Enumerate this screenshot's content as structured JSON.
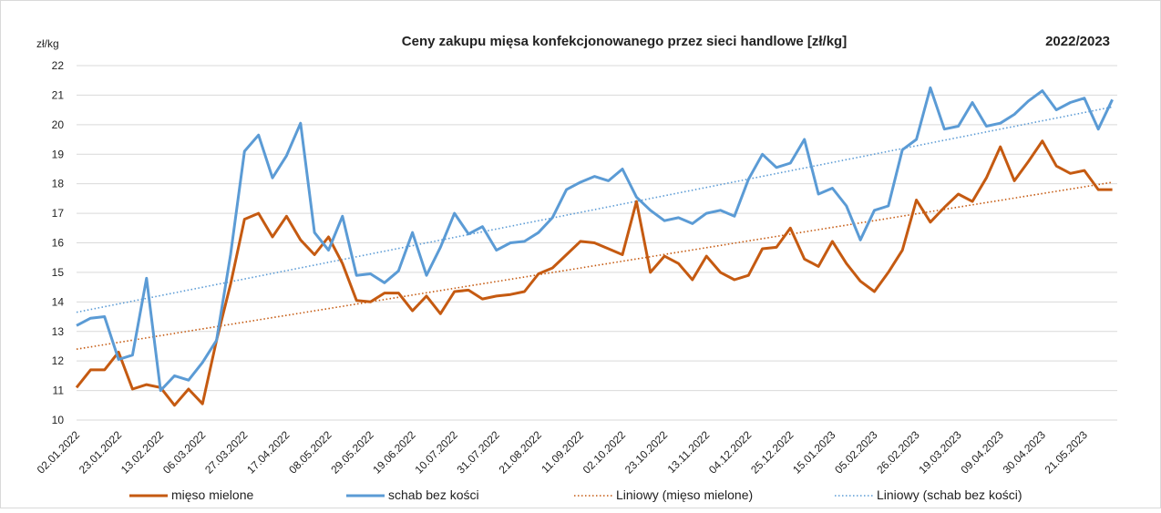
{
  "chart_data": {
    "type": "line",
    "title": "Ceny zakupu mięsa konfekcjonowanego przez sieci handlowe [zł/kg]",
    "subtitle": "2022/2023",
    "y_label": "zł/kg",
    "categories": [
      "02.01.2022",
      null,
      null,
      "23.01.2022",
      null,
      null,
      "13.02.2022",
      null,
      null,
      "06.03.2022",
      null,
      null,
      "27.03.2022",
      null,
      null,
      "17.04.2022",
      null,
      null,
      "08.05.2022",
      null,
      null,
      "29.05.2022",
      null,
      null,
      "19.06.2022",
      null,
      null,
      "10.07.2022",
      null,
      null,
      "31.07.2022",
      null,
      null,
      "21.08.2022",
      null,
      null,
      "11.09.2022",
      null,
      null,
      "02.10.2022",
      null,
      null,
      "23.10.2022",
      null,
      null,
      "13.11.2022",
      null,
      null,
      "04.12.2022",
      null,
      null,
      "25.12.2022",
      null,
      null,
      "15.01.2023",
      null,
      null,
      "05.02.2023",
      null,
      null,
      "26.02.2023",
      null,
      null,
      "19.03.2023",
      null,
      null,
      "09.04.2023",
      null,
      null,
      "30.04.2023",
      null,
      null,
      "21.05.2023",
      null,
      null
    ],
    "series": [
      {
        "name": "mięso mielone",
        "color": "#c55a11",
        "values": [
          11.1,
          11.7,
          11.7,
          12.3,
          11.05,
          11.2,
          11.1,
          10.5,
          11.05,
          10.55,
          12.7,
          14.6,
          16.8,
          17.0,
          16.2,
          16.9,
          16.1,
          15.6,
          16.2,
          15.3,
          14.05,
          14.0,
          14.3,
          14.3,
          13.7,
          14.2,
          13.6,
          14.35,
          14.4,
          14.1,
          14.2,
          14.25,
          14.35,
          14.95,
          15.15,
          15.6,
          16.05,
          16.0,
          15.8,
          15.6,
          17.4,
          15.0,
          15.55,
          15.3,
          14.75,
          15.55,
          15.0,
          14.75,
          14.9,
          15.8,
          15.85,
          16.5,
          15.45,
          15.2,
          16.05,
          15.3,
          14.7,
          14.35,
          15.0,
          15.75,
          17.45,
          16.7,
          17.2,
          17.65,
          17.4,
          18.2,
          19.25,
          18.1,
          18.75,
          19.45,
          18.6,
          18.35,
          18.45,
          17.8,
          17.8
        ]
      },
      {
        "name": "schab bez kości",
        "color": "#5b9bd5",
        "values": [
          13.2,
          13.45,
          13.5,
          12.05,
          12.2,
          14.8,
          11.0,
          11.5,
          11.35,
          11.95,
          12.7,
          15.6,
          19.1,
          19.65,
          18.2,
          18.95,
          20.05,
          16.35,
          15.75,
          16.9,
          14.9,
          14.95,
          14.65,
          15.05,
          16.35,
          14.9,
          15.85,
          17.0,
          16.3,
          16.55,
          15.75,
          16.0,
          16.05,
          16.35,
          16.85,
          17.8,
          18.05,
          18.25,
          18.1,
          18.5,
          17.55,
          17.1,
          16.75,
          16.85,
          16.65,
          17.0,
          17.1,
          16.9,
          18.15,
          19.0,
          18.55,
          18.7,
          19.5,
          17.65,
          17.85,
          17.25,
          16.1,
          17.1,
          17.25,
          19.15,
          19.5,
          21.25,
          19.85,
          19.95,
          20.75,
          19.95,
          20.05,
          20.35,
          20.8,
          21.15,
          20.5,
          20.75,
          20.9,
          19.85,
          20.85
        ]
      }
    ],
    "trendlines": [
      {
        "name": "Liniowy (mięso mielone)",
        "color": "#c55a11",
        "from": 12.4,
        "to": 18.05
      },
      {
        "name": "Liniowy (schab bez kości)",
        "color": "#5b9bd5",
        "from": 13.65,
        "to": 20.6
      }
    ],
    "ylim": [
      10,
      22
    ],
    "yticks": [
      10,
      11,
      12,
      13,
      14,
      15,
      16,
      17,
      18,
      19,
      20,
      21,
      22
    ],
    "grid": true
  }
}
